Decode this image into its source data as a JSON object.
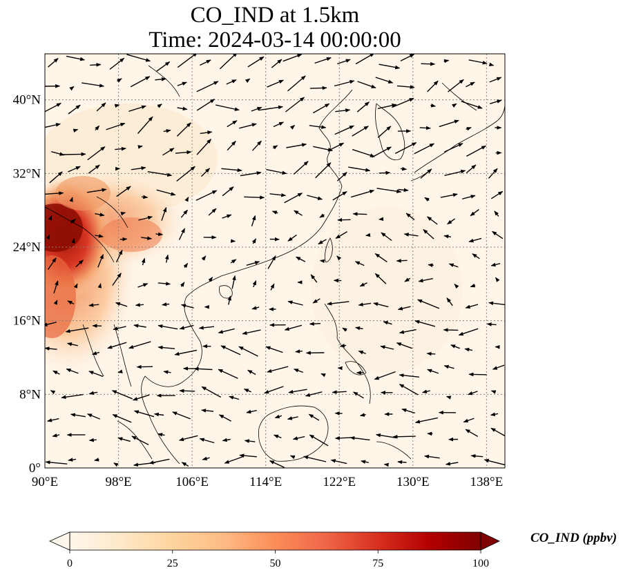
{
  "title": {
    "line1": "CO_IND at 1.5km",
    "line2": "Time: 2024-03-14 00:00:00"
  },
  "map": {
    "lon_range": [
      90,
      140
    ],
    "lat_range": [
      0,
      45
    ],
    "x_ticks": [
      {
        "lon": 90,
        "label": "90°E"
      },
      {
        "lon": 98,
        "label": "98°E"
      },
      {
        "lon": 106,
        "label": "106°E"
      },
      {
        "lon": 114,
        "label": "114°E"
      },
      {
        "lon": 122,
        "label": "122°E"
      },
      {
        "lon": 130,
        "label": "130°E"
      },
      {
        "lon": 138,
        "label": "138°E"
      }
    ],
    "y_ticks": [
      {
        "lat": 0,
        "label": "0°"
      },
      {
        "lat": 8,
        "label": "8°N"
      },
      {
        "lat": 16,
        "label": "16°N"
      },
      {
        "lat": 24,
        "label": "24°N"
      },
      {
        "lat": 32,
        "label": "32°N"
      },
      {
        "lat": 40,
        "label": "40°N"
      }
    ],
    "gridlines": true
  },
  "colorbar": {
    "label": "CO_IND (ppbv)",
    "colormap": [
      "#fff7ec",
      "#fee8c8",
      "#fdd49e",
      "#fdbb84",
      "#fc8d59",
      "#ef6548",
      "#d7301f",
      "#b30000",
      "#7f0000"
    ],
    "range": [
      0,
      100
    ],
    "ticks": [
      "0",
      "25",
      "50",
      "75",
      "100"
    ],
    "extend": "both"
  },
  "colors": {
    "background_low": "#fff5e9",
    "coastline": "#000000",
    "grid": "#808080",
    "vectors": "#000000"
  }
}
